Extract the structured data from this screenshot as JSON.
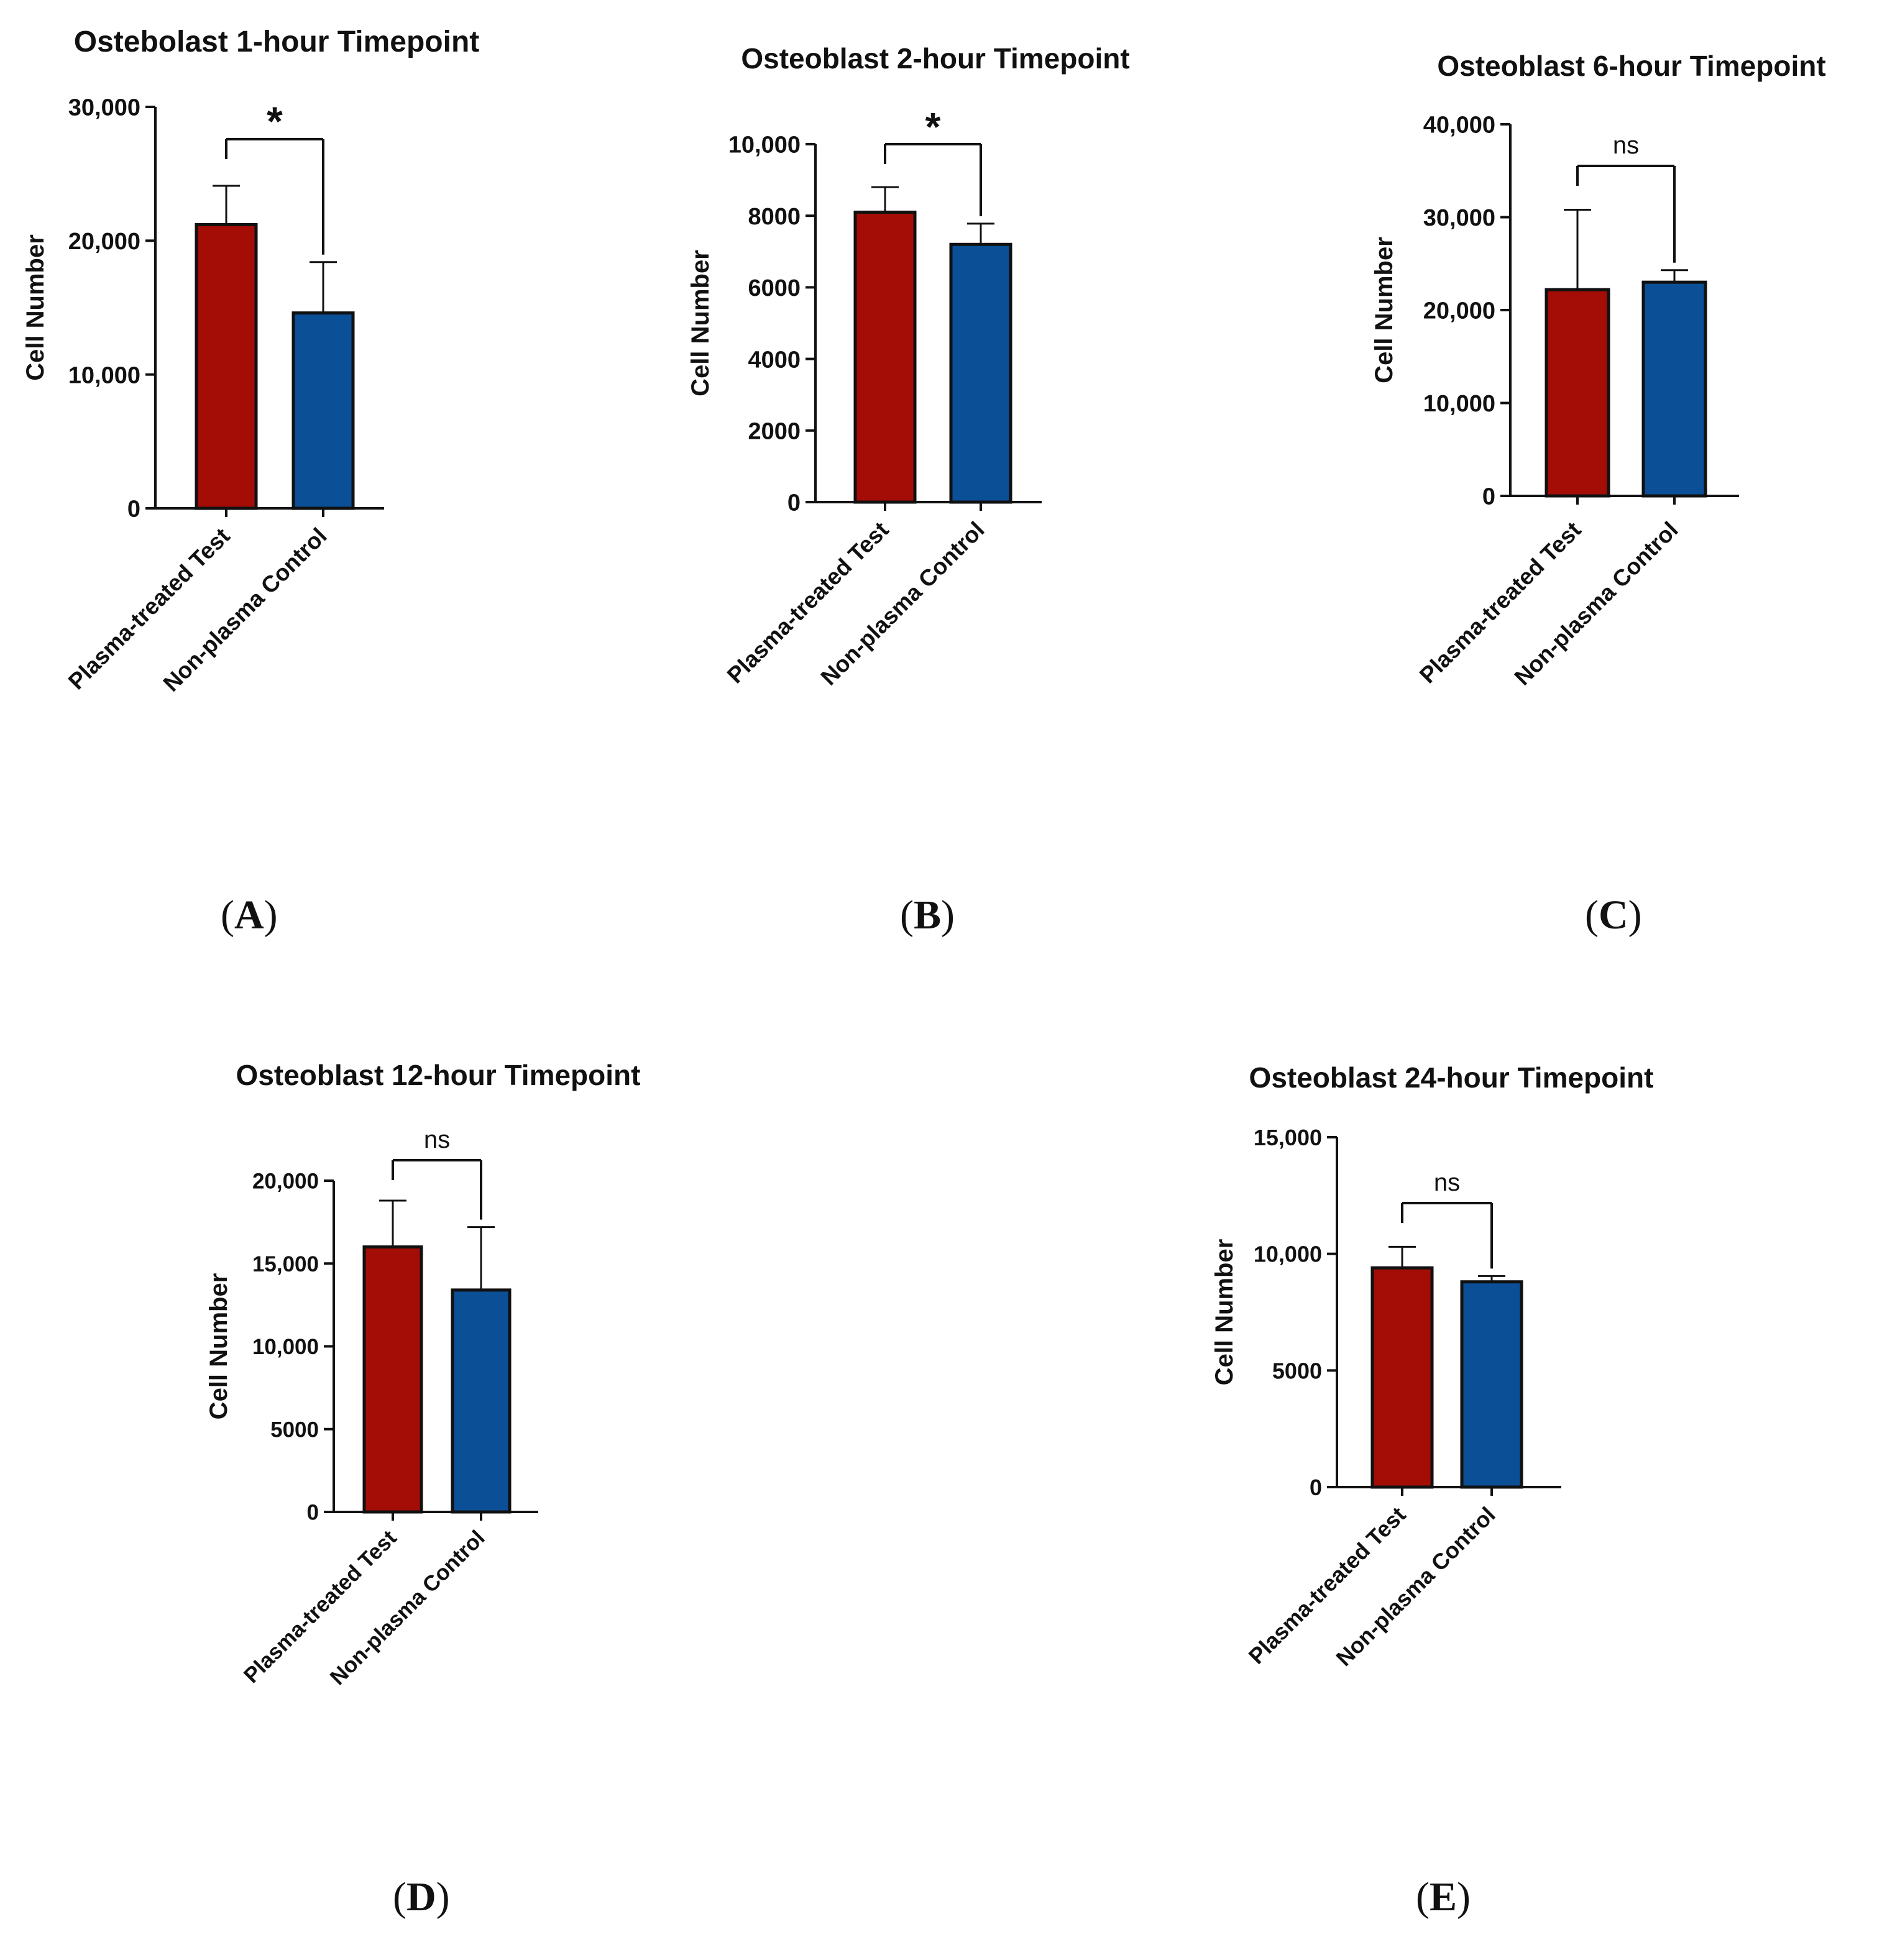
{
  "colors": {
    "test": "#a30d06",
    "control": "#0b4f96",
    "ink": "#111111"
  },
  "chart_data": [
    {
      "id": "A",
      "type": "bar",
      "panel_label": "A",
      "title": "Ostebolast 1-hour Timepoint",
      "ylabel": "Cell Number",
      "categories": [
        "Plasma-treated Test",
        "Non-plasma Control"
      ],
      "values": [
        21200,
        14600
      ],
      "errors": [
        2900,
        3800
      ],
      "ylim": [
        0,
        30000
      ],
      "yticks": [
        0,
        10000,
        20000,
        30000
      ],
      "ytick_labels": [
        "0",
        "10,000",
        "20,000",
        "30,000"
      ],
      "significance": "*"
    },
    {
      "id": "B",
      "type": "bar",
      "panel_label": "B",
      "title": "Osteoblast 2-hour Timepoint",
      "ylabel": "Cell Number",
      "categories": [
        "Plasma-treated Test",
        "Non-plasma Control"
      ],
      "values": [
        8100,
        7200
      ],
      "errors": [
        700,
        580
      ],
      "ylim": [
        0,
        10000
      ],
      "yticks": [
        0,
        2000,
        4000,
        6000,
        8000,
        10000
      ],
      "ytick_labels": [
        "0",
        "2000",
        "4000",
        "6000",
        "8000",
        "10,000"
      ],
      "significance": "*"
    },
    {
      "id": "C",
      "type": "bar",
      "panel_label": "C",
      "title": "Osteoblast 6-hour Timepoint",
      "ylabel": "Cell Number",
      "categories": [
        "Plasma-treated Test",
        "Non-plasma Control"
      ],
      "values": [
        22200,
        23000
      ],
      "errors": [
        8600,
        1300
      ],
      "ylim": [
        0,
        40000
      ],
      "yticks": [
        0,
        10000,
        20000,
        30000,
        40000
      ],
      "ytick_labels": [
        "0",
        "10,000",
        "20,000",
        "30,000",
        "40,000"
      ],
      "significance": "ns"
    },
    {
      "id": "D",
      "type": "bar",
      "panel_label": "D",
      "title": "Osteoblast 12-hour Timepoint",
      "ylabel": "Cell Number",
      "categories": [
        "Plasma-treated Test",
        "Non-plasma Control"
      ],
      "values": [
        16000,
        13400
      ],
      "errors": [
        2800,
        3800
      ],
      "ylim": [
        0,
        20000
      ],
      "yticks": [
        0,
        5000,
        10000,
        15000,
        20000
      ],
      "ytick_labels": [
        "0",
        "5000",
        "10,000",
        "15,000",
        "20,000"
      ],
      "significance": "ns"
    },
    {
      "id": "E",
      "type": "bar",
      "panel_label": "E",
      "title": "Osteoblast 24-hour Timepoint",
      "ylabel": "Cell Number",
      "categories": [
        "Plasma-treated Test",
        "Non-plasma Control"
      ],
      "values": [
        9400,
        8800
      ],
      "errors": [
        900,
        250
      ],
      "ylim": [
        0,
        15000
      ],
      "yticks": [
        0,
        5000,
        10000,
        15000
      ],
      "ytick_labels": [
        "0",
        "5000",
        "10,000",
        "15,000"
      ],
      "significance": "ns"
    }
  ]
}
